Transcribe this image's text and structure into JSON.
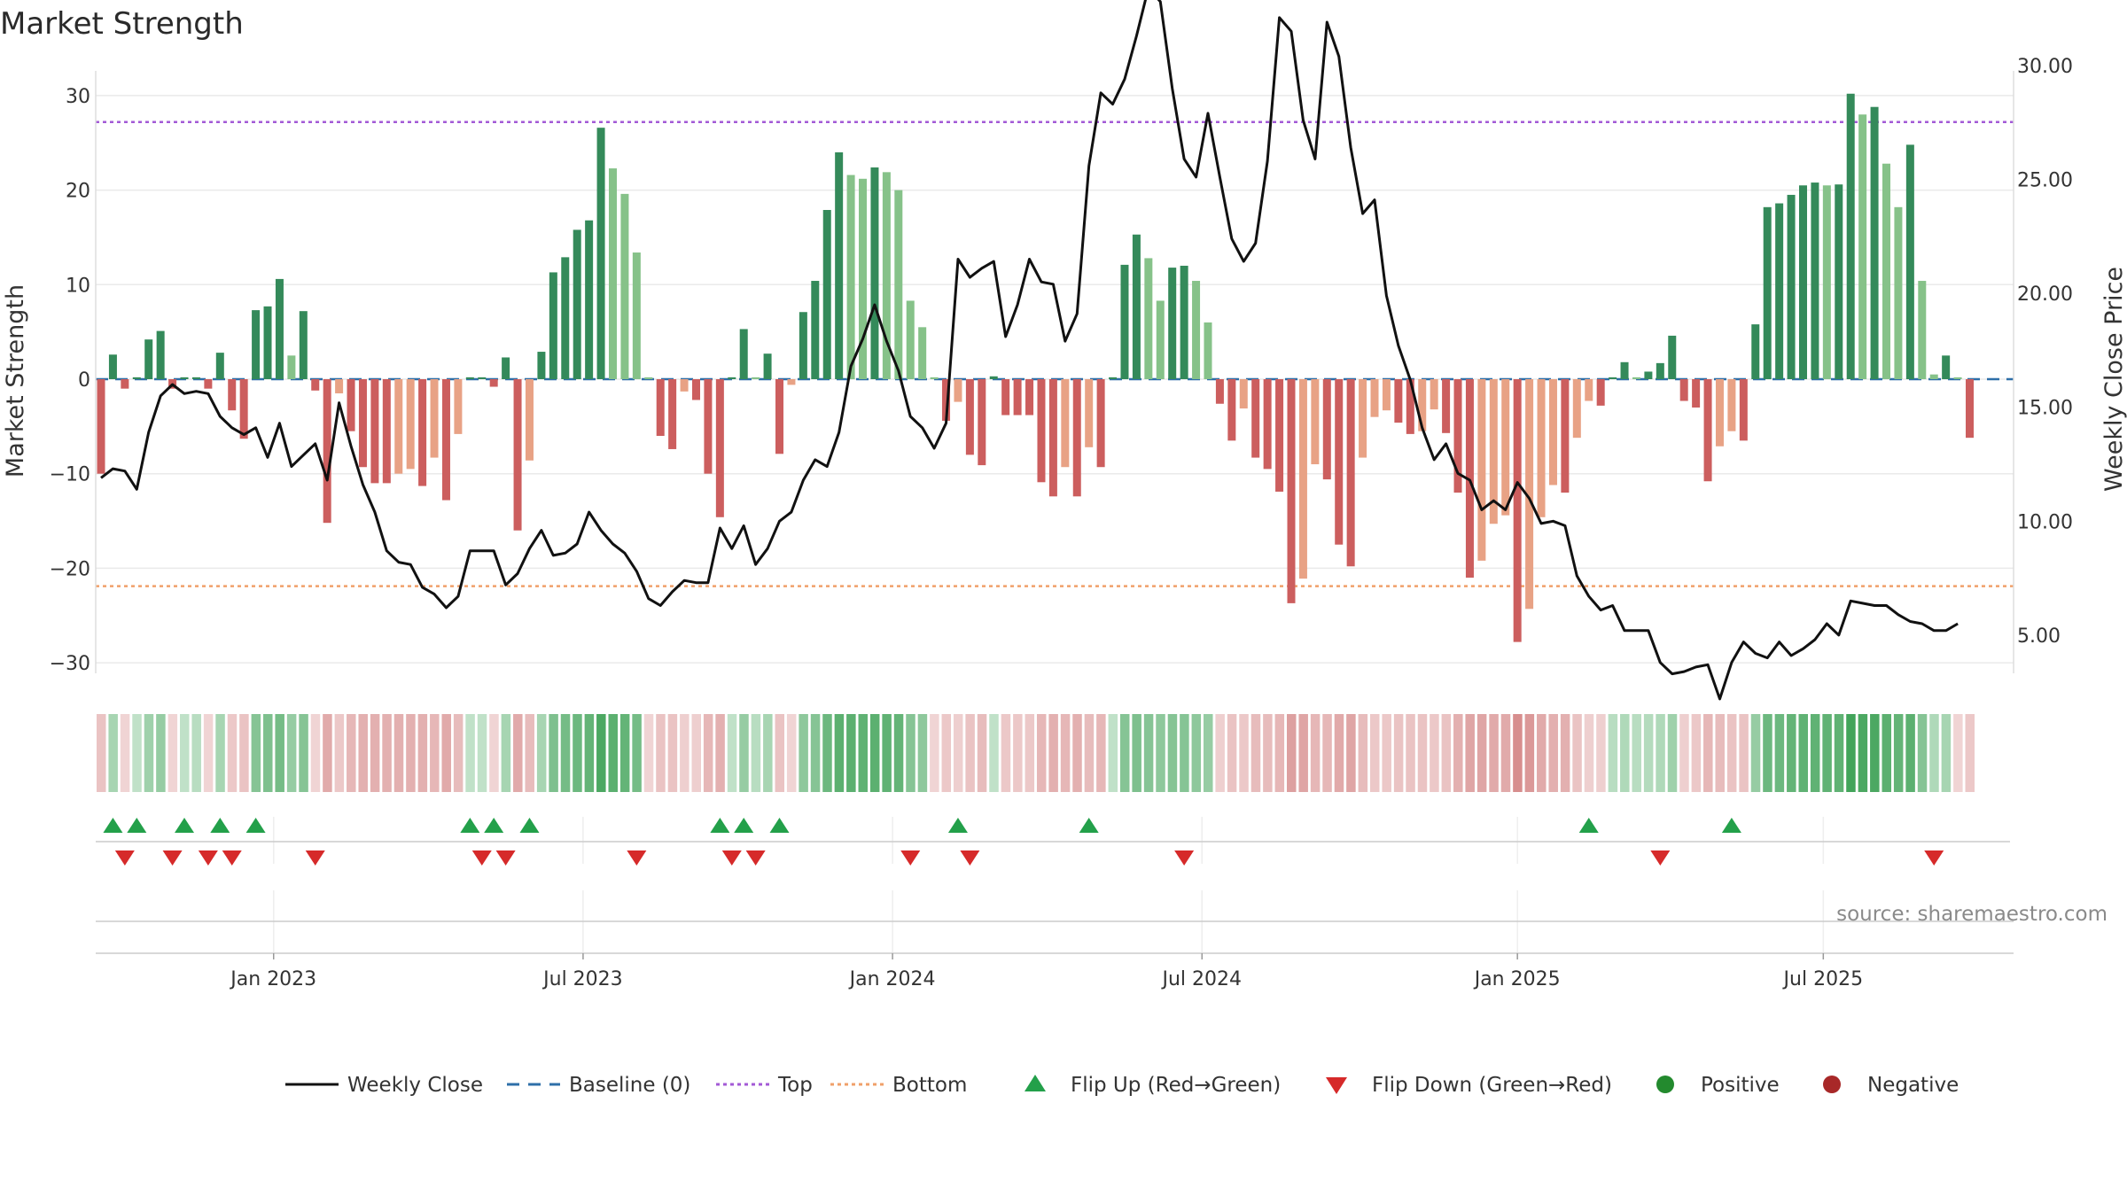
{
  "chart_data": {
    "type": "bar",
    "title": "Market Strength",
    "ylabel": "Market Strength",
    "y2label": "Weekly Close Price",
    "ylim": [
      -31,
      31
    ],
    "y2lim": [
      4.0,
      31.0
    ],
    "yticks": [
      30,
      20,
      10,
      0,
      -10,
      -20,
      -30
    ],
    "yticks_labels": [
      "30",
      "20",
      "10",
      "0",
      "−10",
      "−20",
      "−30"
    ],
    "y2ticks": [
      30,
      25,
      20,
      15,
      10,
      5
    ],
    "y2ticks_labels": [
      "30.00",
      "25.00",
      "20.00",
      "15.00",
      "10.00",
      "5.00"
    ],
    "top_level": 27.2,
    "bottom_level": -21.9,
    "xticks": [
      {
        "week": 14.5,
        "label": "Jan 2023"
      },
      {
        "week": 40.5,
        "label": "Jul 2023"
      },
      {
        "week": 66.5,
        "label": "Jan 2024"
      },
      {
        "week": 92.5,
        "label": "Jul 2024"
      },
      {
        "week": 119,
        "label": "Jan 2025"
      },
      {
        "week": 144.7,
        "label": "Jul 2025"
      }
    ],
    "strength": [
      -10,
      2.6,
      -1,
      0.2,
      4.2,
      5.1,
      -1,
      0.2,
      0.2,
      -1,
      2.8,
      -3.3,
      -6.3,
      7.3,
      7.7,
      10.6,
      2.5,
      7.2,
      -1.2,
      -15.2,
      -1.5,
      -5.5,
      -9.3,
      -11,
      -11,
      -10,
      -9.5,
      -11.3,
      -8.3,
      -12.8,
      -5.8,
      0.2,
      0.2,
      -0.8,
      2.3,
      -16,
      -8.6,
      2.9,
      11.3,
      12.9,
      15.8,
      16.8,
      26.6,
      22.3,
      19.6,
      13.4,
      0.2,
      -6,
      -7.4,
      -1.3,
      -2.2,
      -10,
      -14.6,
      0.2,
      5.3,
      0.2,
      2.7,
      -7.9,
      -0.6,
      7.1,
      10.4,
      17.9,
      24,
      21.6,
      21.2,
      22.4,
      21.9,
      20,
      8.3,
      5.5,
      0.2,
      -4.4,
      -2.4,
      -8,
      -9.1,
      0.3,
      -3.8,
      -3.8,
      -3.8,
      -10.9,
      -12.4,
      -9.3,
      -12.4,
      -7.2,
      -9.3,
      0.2,
      12.1,
      15.3,
      12.8,
      8.3,
      11.8,
      12,
      10.4,
      6,
      -2.6,
      -6.5,
      -3.1,
      -8.3,
      -9.5,
      -11.9,
      -23.7,
      -21.1,
      -9,
      -10.6,
      -17.5,
      -19.8,
      -8.3,
      -4,
      -3.3,
      -4.6,
      -5.8,
      -5.5,
      -3.2,
      -5.7,
      -12,
      -21,
      -19.2,
      -15.3,
      -14.4,
      -27.8,
      -24.3,
      -14.6,
      -11.2,
      -12,
      -6.2,
      -2.3,
      -2.8,
      0.2,
      1.8,
      0.2,
      0.8,
      1.7,
      4.6,
      -2.3,
      -3,
      -10.8,
      -7.1,
      -5.5,
      -6.5,
      5.8,
      18.2,
      18.6,
      19.5,
      20.5,
      20.8,
      20.5,
      20.6,
      30.2,
      28,
      28.8,
      22.8,
      18.2,
      24.8,
      10.4,
      0.5,
      2.5,
      0.2,
      -6.2
    ],
    "close": [
      11.9,
      12.3,
      12.2,
      11.4,
      13.9,
      15.5,
      16,
      15.6,
      15.7,
      15.6,
      14.6,
      14.1,
      13.8,
      14.1,
      12.8,
      14.3,
      12.4,
      12.9,
      13.4,
      11.8,
      15.2,
      13.3,
      11.6,
      10.4,
      8.7,
      8.2,
      8.1,
      7.1,
      6.8,
      6.2,
      6.7,
      8.7,
      8.7,
      8.7,
      7.2,
      7.7,
      8.8,
      9.6,
      8.5,
      8.6,
      9,
      10.4,
      9.6,
      9,
      8.6,
      7.8,
      6.6,
      6.3,
      6.9,
      7.4,
      7.3,
      7.3,
      9.7,
      8.8,
      9.8,
      8.1,
      8.8,
      10,
      10.4,
      11.8,
      12.7,
      12.4,
      13.9,
      16.8,
      18,
      19.5,
      17.9,
      16.6,
      14.6,
      14.1,
      13.2,
      14.3,
      21.5,
      20.7,
      21.1,
      21.4,
      18.1,
      19.5,
      21.5,
      20.5,
      20.4,
      17.9,
      19.1,
      25.6,
      28.8,
      28.3,
      29.4,
      31.3,
      33.4,
      32.8,
      29,
      25.9,
      25.1,
      27.9,
      25.1,
      22.4,
      21.4,
      22.2,
      25.8,
      32.1,
      31.5,
      27.6,
      25.9,
      31.9,
      30.4,
      26.4,
      23.5,
      24.1,
      19.9,
      17.7,
      16.2,
      14.1,
      12.7,
      13.4,
      12.1,
      11.8,
      10.5,
      10.9,
      10.5,
      11.7,
      11,
      9.9,
      10,
      9.8,
      7.6,
      6.7,
      6.1,
      6.3,
      5.2,
      5.2,
      5.2,
      3.8,
      3.3,
      3.4,
      3.6,
      3.7,
      2.2,
      3.8,
      4.7,
      4.2,
      4,
      4.7,
      4.1,
      4.4,
      4.8,
      5.5,
      5,
      6.5,
      6.4,
      6.3,
      6.3,
      5.9,
      5.6,
      5.5,
      5.2,
      5.2,
      5.5
    ],
    "band_intensity": [
      -0.35,
      0.3,
      -0.2,
      0.15,
      0.35,
      0.4,
      -0.2,
      0.15,
      0.2,
      -0.2,
      0.3,
      -0.3,
      -0.35,
      0.5,
      0.55,
      0.6,
      0.4,
      0.5,
      -0.2,
      -0.55,
      -0.3,
      -0.45,
      -0.5,
      -0.5,
      -0.5,
      -0.5,
      -0.5,
      -0.5,
      -0.45,
      -0.55,
      -0.4,
      0.15,
      0.15,
      -0.2,
      0.3,
      -0.55,
      -0.4,
      0.3,
      0.55,
      0.6,
      0.65,
      0.7,
      0.85,
      0.75,
      0.7,
      0.6,
      -0.2,
      -0.35,
      -0.35,
      -0.25,
      -0.25,
      -0.45,
      -0.5,
      0.15,
      0.4,
      0.2,
      0.3,
      -0.35,
      -0.2,
      0.45,
      0.5,
      0.65,
      0.75,
      0.75,
      0.72,
      0.75,
      0.72,
      0.7,
      0.5,
      0.45,
      -0.2,
      -0.3,
      -0.25,
      -0.35,
      -0.4,
      0.15,
      -0.3,
      -0.3,
      -0.3,
      -0.45,
      -0.5,
      -0.45,
      -0.5,
      -0.4,
      -0.45,
      0.15,
      0.5,
      0.55,
      0.5,
      0.45,
      0.5,
      0.5,
      0.45,
      0.4,
      -0.25,
      -0.35,
      -0.3,
      -0.4,
      -0.4,
      -0.45,
      -0.65,
      -0.6,
      -0.45,
      -0.45,
      -0.55,
      -0.6,
      -0.4,
      -0.3,
      -0.3,
      -0.35,
      -0.35,
      -0.35,
      -0.3,
      -0.35,
      -0.5,
      -0.6,
      -0.6,
      -0.55,
      -0.55,
      -0.8,
      -0.7,
      -0.55,
      -0.5,
      -0.5,
      -0.35,
      -0.25,
      -0.25,
      0.2,
      0.25,
      0.2,
      0.22,
      0.25,
      0.35,
      -0.25,
      -0.3,
      -0.45,
      -0.4,
      -0.35,
      -0.35,
      0.4,
      0.65,
      0.65,
      0.7,
      0.72,
      0.72,
      0.72,
      0.72,
      0.9,
      0.85,
      0.85,
      0.75,
      0.7,
      0.75,
      0.5,
      0.25,
      0.3,
      -0.2,
      -0.3
    ],
    "flip_up_weeks": [
      1,
      3,
      7,
      10,
      13,
      31,
      33,
      36,
      52,
      54,
      57,
      72,
      83,
      125,
      137
    ],
    "flip_down_weeks": [
      2,
      6,
      9,
      11,
      18,
      32,
      34,
      45,
      53,
      55,
      68,
      73,
      91,
      131,
      154
    ],
    "legend": [
      {
        "key": "weekly-close",
        "label": "Weekly Close",
        "color": "#111111"
      },
      {
        "key": "baseline",
        "label": "Baseline (0)",
        "color": "#2e6fa8"
      },
      {
        "key": "top",
        "label": "Top",
        "color": "#a35ad6"
      },
      {
        "key": "bottom",
        "label": "Bottom",
        "color": "#f0a06a"
      },
      {
        "key": "flip-up",
        "label": "Flip Up (Red→Green)",
        "color": "#23a04a"
      },
      {
        "key": "flip-down",
        "label": "Flip Down (Green→Red)",
        "color": "#d62a2a"
      },
      {
        "key": "positive",
        "label": "Positive",
        "color": "#238a2e"
      },
      {
        "key": "negative",
        "label": "Negative",
        "color": "#a82828"
      }
    ],
    "legend_position": "bottom",
    "source": "source: sharemaestro.com",
    "colors": {
      "bar_pos_strong": "#348a5a",
      "bar_pos_weak": "#86c289",
      "bar_neg_strong": "#cc5e5e",
      "bar_neg_weak": "#e8a285",
      "grid": "#eaeaea"
    }
  }
}
